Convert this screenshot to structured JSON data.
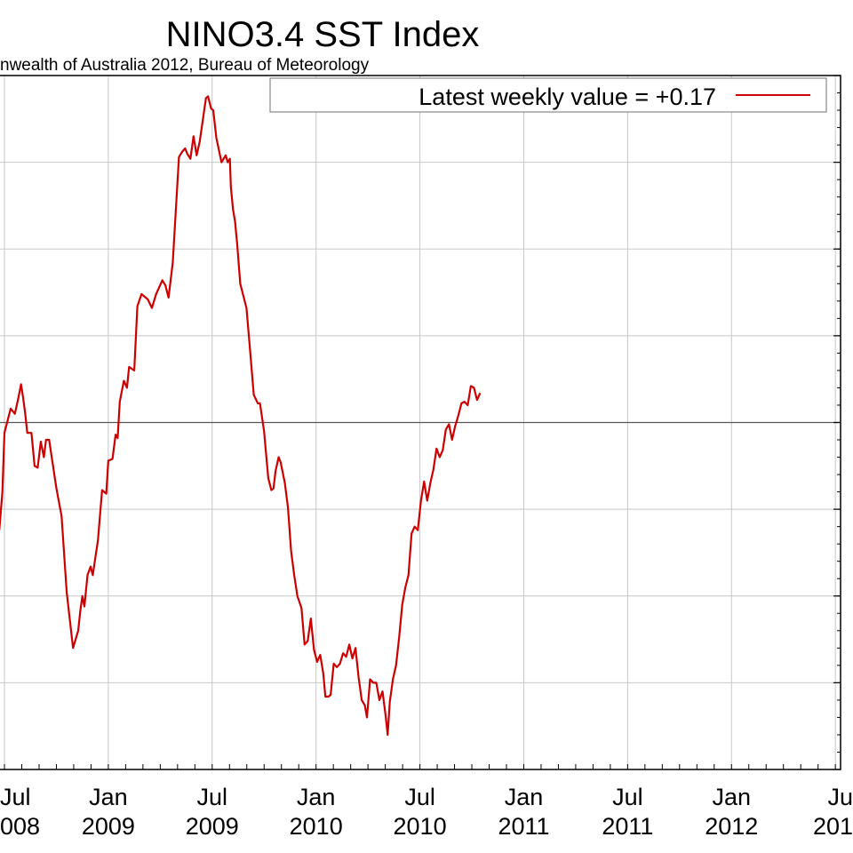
{
  "chart_data": {
    "type": "line",
    "title": "NINO3.4 SST Index",
    "subtitle": "nwealth of Australia 2012, Bureau of Meteorology",
    "legend": {
      "label": "Latest weekly value = +0.17",
      "placement": "top-right"
    },
    "grid": true,
    "x_ticks": [
      {
        "month": "Jul",
        "year": "008",
        "t": 0.5
      },
      {
        "month": "Jan",
        "year": "2009",
        "t": 1.0
      },
      {
        "month": "Jul",
        "year": "2009",
        "t": 1.5
      },
      {
        "month": "Jan",
        "year": "2010",
        "t": 2.0
      },
      {
        "month": "Jul",
        "year": "2010",
        "t": 2.5
      },
      {
        "month": "Jan",
        "year": "2011",
        "t": 3.0
      },
      {
        "month": "Jul",
        "year": "2011",
        "t": 3.5
      },
      {
        "month": "Jan",
        "year": "2012",
        "t": 4.0
      },
      {
        "month": "Ju",
        "year": "201",
        "t": 4.5
      }
    ],
    "xlim": [
      0.47,
      4.525
    ],
    "ylim": [
      -2,
      2
    ],
    "zero_line": 0,
    "series": [
      {
        "color": "#cc0000",
        "points": [
          [
            0.475,
            -0.62
          ],
          [
            0.49,
            -0.4
          ],
          [
            0.5,
            -0.06
          ],
          [
            0.53,
            0.08
          ],
          [
            0.55,
            0.05
          ],
          [
            0.565,
            0.13
          ],
          [
            0.58,
            0.22
          ],
          [
            0.59,
            0.14
          ],
          [
            0.6,
            0.05
          ],
          [
            0.61,
            -0.06
          ],
          [
            0.63,
            -0.06
          ],
          [
            0.645,
            -0.25
          ],
          [
            0.66,
            -0.26
          ],
          [
            0.675,
            -0.11
          ],
          [
            0.69,
            -0.2
          ],
          [
            0.7,
            -0.1
          ],
          [
            0.715,
            -0.1
          ],
          [
            0.73,
            -0.22
          ],
          [
            0.75,
            -0.38
          ],
          [
            0.775,
            -0.54
          ],
          [
            0.8,
            -0.98
          ],
          [
            0.83,
            -1.3
          ],
          [
            0.855,
            -1.2
          ],
          [
            0.865,
            -1.09
          ],
          [
            0.875,
            -1.0
          ],
          [
            0.885,
            -1.06
          ],
          [
            0.9,
            -0.88
          ],
          [
            0.915,
            -0.83
          ],
          [
            0.925,
            -0.88
          ],
          [
            0.935,
            -0.8
          ],
          [
            0.95,
            -0.68
          ],
          [
            0.97,
            -0.39
          ],
          [
            0.99,
            -0.41
          ],
          [
            1.0,
            -0.22
          ],
          [
            1.02,
            -0.21
          ],
          [
            1.035,
            -0.07
          ],
          [
            1.045,
            -0.09
          ],
          [
            1.055,
            0.12
          ],
          [
            1.075,
            0.24
          ],
          [
            1.09,
            0.2
          ],
          [
            1.1,
            0.32
          ],
          [
            1.125,
            0.3
          ],
          [
            1.14,
            0.67
          ],
          [
            1.16,
            0.74
          ],
          [
            1.19,
            0.71
          ],
          [
            1.21,
            0.66
          ],
          [
            1.23,
            0.74
          ],
          [
            1.245,
            0.78
          ],
          [
            1.26,
            0.82
          ],
          [
            1.275,
            0.79
          ],
          [
            1.29,
            0.72
          ],
          [
            1.31,
            0.92
          ],
          [
            1.34,
            1.53
          ],
          [
            1.355,
            1.56
          ],
          [
            1.37,
            1.58
          ],
          [
            1.38,
            1.55
          ],
          [
            1.395,
            1.52
          ],
          [
            1.41,
            1.65
          ],
          [
            1.425,
            1.54
          ],
          [
            1.44,
            1.62
          ],
          [
            1.47,
            1.87
          ],
          [
            1.48,
            1.88
          ],
          [
            1.495,
            1.81
          ],
          [
            1.505,
            1.8
          ],
          [
            1.52,
            1.64
          ],
          [
            1.545,
            1.5
          ],
          [
            1.565,
            1.54
          ],
          [
            1.575,
            1.5
          ],
          [
            1.585,
            1.52
          ],
          [
            1.59,
            1.36
          ],
          [
            1.6,
            1.23
          ],
          [
            1.61,
            1.16
          ],
          [
            1.62,
            1.03
          ],
          [
            1.635,
            0.8
          ],
          [
            1.65,
            0.73
          ],
          [
            1.665,
            0.66
          ],
          [
            1.68,
            0.45
          ],
          [
            1.7,
            0.16
          ],
          [
            1.72,
            0.11
          ],
          [
            1.73,
            0.11
          ],
          [
            1.75,
            -0.05
          ],
          [
            1.77,
            -0.32
          ],
          [
            1.785,
            -0.39
          ],
          [
            1.795,
            -0.38
          ],
          [
            1.805,
            -0.28
          ],
          [
            1.82,
            -0.2
          ],
          [
            1.83,
            -0.23
          ],
          [
            1.85,
            -0.35
          ],
          [
            1.865,
            -0.49
          ],
          [
            1.88,
            -0.74
          ],
          [
            1.895,
            -0.88
          ],
          [
            1.91,
            -1.0
          ],
          [
            1.93,
            -1.07
          ],
          [
            1.945,
            -1.28
          ],
          [
            1.96,
            -1.26
          ],
          [
            1.975,
            -1.13
          ],
          [
            1.99,
            -1.31
          ],
          [
            2.005,
            -1.38
          ],
          [
            2.02,
            -1.34
          ],
          [
            2.035,
            -1.45
          ],
          [
            2.045,
            -1.58
          ],
          [
            2.06,
            -1.58
          ],
          [
            2.07,
            -1.57
          ],
          [
            2.085,
            -1.39
          ],
          [
            2.1,
            -1.41
          ],
          [
            2.115,
            -1.39
          ],
          [
            2.13,
            -1.33
          ],
          [
            2.145,
            -1.35
          ],
          [
            2.16,
            -1.28
          ],
          [
            2.175,
            -1.36
          ],
          [
            2.19,
            -1.3
          ],
          [
            2.205,
            -1.47
          ],
          [
            2.22,
            -1.6
          ],
          [
            2.235,
            -1.63
          ],
          [
            2.245,
            -1.7
          ],
          [
            2.26,
            -1.48
          ],
          [
            2.275,
            -1.5
          ],
          [
            2.29,
            -1.5
          ],
          [
            2.305,
            -1.6
          ],
          [
            2.32,
            -1.55
          ],
          [
            2.335,
            -1.69
          ],
          [
            2.345,
            -1.8
          ],
          [
            2.355,
            -1.61
          ],
          [
            2.37,
            -1.48
          ],
          [
            2.385,
            -1.4
          ],
          [
            2.4,
            -1.24
          ],
          [
            2.415,
            -1.05
          ],
          [
            2.43,
            -0.95
          ],
          [
            2.445,
            -0.88
          ],
          [
            2.46,
            -0.64
          ],
          [
            2.475,
            -0.6
          ],
          [
            2.49,
            -0.62
          ],
          [
            2.505,
            -0.45
          ],
          [
            2.52,
            -0.34
          ],
          [
            2.535,
            -0.45
          ],
          [
            2.55,
            -0.35
          ],
          [
            2.565,
            -0.27
          ],
          [
            2.58,
            -0.15
          ],
          [
            2.595,
            -0.2
          ],
          [
            2.61,
            -0.16
          ],
          [
            2.625,
            -0.04
          ],
          [
            2.64,
            -0.01
          ],
          [
            2.655,
            -0.1
          ],
          [
            2.67,
            -0.02
          ],
          [
            2.685,
            0.04
          ],
          [
            2.7,
            0.11
          ],
          [
            2.715,
            0.12
          ],
          [
            2.73,
            0.1
          ],
          [
            2.745,
            0.21
          ],
          [
            2.76,
            0.2
          ],
          [
            2.775,
            0.13
          ],
          [
            2.79,
            0.17
          ]
        ]
      }
    ]
  },
  "x_edges": [
    0.475,
    0.49,
    0.5,
    0.53,
    0.55,
    0.565,
    0.58,
    0.59,
    0.6,
    0.61,
    0.63,
    0.645,
    0.66,
    0.675,
    0.69,
    0.7,
    0.715,
    0.73,
    0.75,
    0.775,
    0.8,
    0.83,
    0.855,
    0.865,
    0.875,
    0.885,
    0.9,
    0.915,
    0.925,
    0.935,
    0.95,
    0.97,
    0.99,
    1.0,
    1.02,
    1.035,
    1.045,
    1.055,
    1.075,
    1.09,
    1.1,
    1.125,
    1.14,
    1.16,
    1.19,
    1.21,
    1.23,
    1.245,
    1.26,
    1.275,
    1.29,
    1.31,
    1.34,
    1.355,
    1.37,
    1.38,
    1.395,
    1.41,
    1.425,
    1.44,
    1.47,
    1.48,
    1.495,
    1.505,
    1.52,
    1.545,
    1.565,
    1.575,
    1.585,
    1.59,
    1.6,
    1.61,
    1.62,
    1.635,
    1.65,
    1.665,
    1.68,
    1.7,
    1.72,
    1.73,
    1.75,
    1.77,
    1.785,
    1.795,
    1.805,
    1.82,
    1.83,
    1.85,
    1.865,
    1.88,
    1.895,
    1.91,
    1.93,
    1.945,
    1.96,
    1.975,
    1.99,
    2.005,
    2.02,
    2.035,
    2.045,
    2.06,
    2.07,
    2.085,
    2.1,
    2.115,
    2.13,
    2.145,
    2.16,
    2.175,
    2.19,
    2.205,
    2.22,
    2.235,
    2.245,
    2.26,
    2.275,
    2.29,
    2.305,
    2.32,
    2.335,
    2.345,
    2.355,
    2.37,
    2.385,
    2.4,
    2.415,
    2.43,
    2.445,
    2.46,
    2.475,
    2.49,
    2.505,
    2.52,
    2.535,
    2.55,
    2.565,
    2.58,
    2.595,
    2.61,
    2.625,
    2.64,
    2.655,
    2.67,
    2.685,
    2.7,
    2.715,
    2.73,
    2.745,
    2.76,
    2.775,
    2.79
  ]
}
